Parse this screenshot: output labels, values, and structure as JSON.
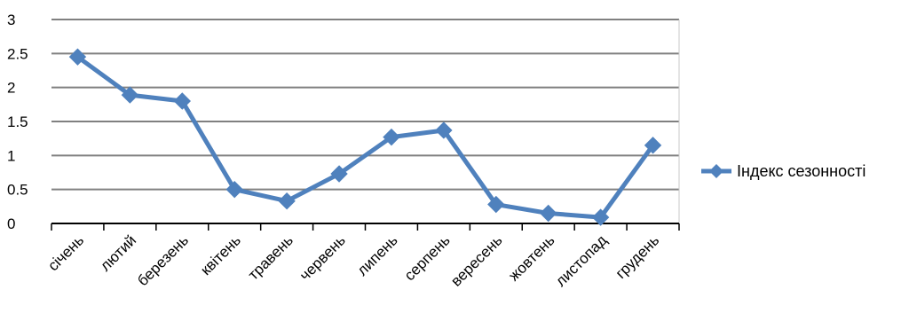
{
  "chart_data": {
    "type": "line",
    "title": "",
    "xlabel": "",
    "ylabel": "",
    "categories": [
      "січень",
      "лютий",
      "березень",
      "квітень",
      "травень",
      "червень",
      "липень",
      "серпень",
      "вересень",
      "жовтень",
      "листопад",
      "грудень"
    ],
    "series": [
      {
        "name": "Індекс сезонності",
        "color": "#4f81bd",
        "marker": "diamond",
        "values": [
          2.45,
          1.89,
          1.8,
          0.5,
          0.33,
          0.73,
          1.27,
          1.37,
          0.28,
          0.15,
          0.09,
          1.15
        ]
      }
    ],
    "ylim": [
      0,
      3
    ],
    "yticks": [
      "0",
      "0.5",
      "1",
      "1.5",
      "2",
      "2.5",
      "3"
    ],
    "grid": "horizontal",
    "legend_position": "right"
  }
}
